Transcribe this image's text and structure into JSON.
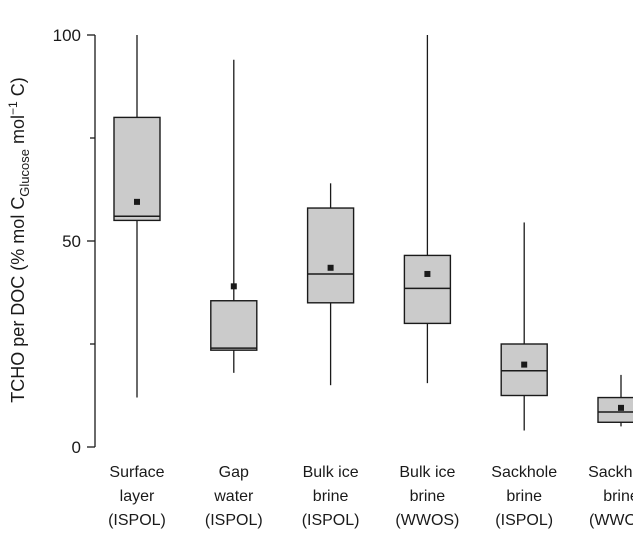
{
  "chart_data": {
    "type": "boxplot",
    "ylabel": {
      "main": "TCHO per DOC (% mol C",
      "subscript": "Glucose",
      "middle": " mol",
      "superscript": "−1",
      "tail": " C)"
    },
    "ylim": [
      0,
      100
    ],
    "yticks": [
      "0",
      "50",
      "100"
    ],
    "yticks_values": [
      0,
      50,
      100
    ],
    "minor_yticks": [
      25,
      75
    ],
    "grid": false,
    "legend": "none",
    "box_fill": "#cbcbcb",
    "categories": [
      {
        "lines": [
          "Surface",
          "layer",
          "(ISPOL)"
        ],
        "whisker_low": 12,
        "q1": 55,
        "median": 56,
        "q3": 80,
        "whisker_high": 100,
        "mean": 59.5
      },
      {
        "lines": [
          "Gap",
          "water",
          "(ISPOL)"
        ],
        "whisker_low": 18,
        "q1": 23.5,
        "median": 24,
        "q3": 35.5,
        "whisker_high": 94,
        "mean": 39
      },
      {
        "lines": [
          "Bulk ice",
          "brine",
          "(ISPOL)"
        ],
        "whisker_low": 15,
        "q1": 35,
        "median": 42,
        "q3": 58,
        "whisker_high": 64,
        "mean": 43.5
      },
      {
        "lines": [
          "Bulk ice",
          "brine",
          "(WWOS)"
        ],
        "whisker_low": 15.5,
        "q1": 30,
        "median": 38.5,
        "q3": 46.5,
        "whisker_high": 100,
        "mean": 42
      },
      {
        "lines": [
          "Sackhole",
          "brine",
          "(ISPOL)"
        ],
        "whisker_low": 4,
        "q1": 12.5,
        "median": 18.5,
        "q3": 25,
        "whisker_high": 54.5,
        "mean": 20
      },
      {
        "lines": [
          "Sackhole",
          "brine",
          "(WWOS)"
        ],
        "whisker_low": 5,
        "q1": 6,
        "median": 8.5,
        "q3": 12,
        "whisker_high": 17.5,
        "mean": 9.5
      }
    ]
  }
}
